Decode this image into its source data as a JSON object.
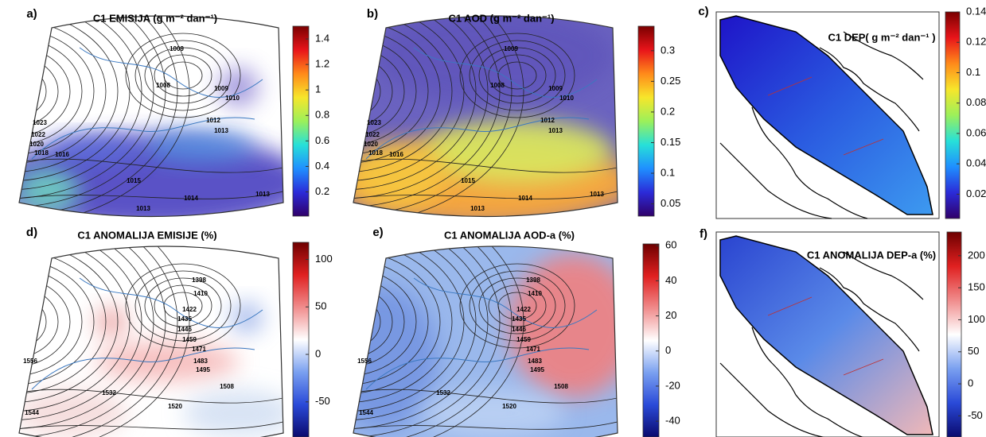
{
  "panels": [
    {
      "label": "a)",
      "title": "C1 EMISIJA (g m⁻² dan⁻¹)",
      "colorbar": {
        "lim": [
          0.01,
          1.5
        ],
        "ticks": [
          0.2,
          0.4,
          0.6,
          0.8,
          1,
          1.2,
          1.4
        ],
        "colormap": [
          "#30006a",
          "#2b2bd8",
          "#1f8fff",
          "#27e0d8",
          "#9cf05a",
          "#f7e62b",
          "#ff8a1a",
          "#e8141a",
          "#7a0000"
        ]
      },
      "contour_labels": [
        "1009",
        "1008",
        "1009",
        "1010",
        "1012",
        "1013",
        "1023",
        "1022",
        "1020",
        "1018",
        "1016",
        "1015",
        "1014",
        "1013",
        "1013"
      ]
    },
    {
      "label": "b)",
      "title": "C1 AOD (g m⁻² dan⁻¹)",
      "colorbar": {
        "lim": [
          0.03,
          0.34
        ],
        "ticks": [
          0.05,
          0.1,
          0.15,
          0.2,
          0.25,
          0.3
        ],
        "colormap": [
          "#30006a",
          "#2b2bd8",
          "#1f8fff",
          "#27e0d8",
          "#9cf05a",
          "#f7e62b",
          "#ff8a1a",
          "#e8141a",
          "#7a0000"
        ]
      },
      "contour_labels": [
        "1009",
        "1008",
        "1009",
        "1010",
        "1012",
        "1013",
        "1023",
        "1022",
        "1020",
        "1018",
        "1016",
        "1015",
        "1014",
        "1013",
        "1013"
      ]
    },
    {
      "label": "c)",
      "title": "C1 DEP( g m⁻² dan⁻¹ )",
      "colorbar": {
        "lim": [
          0.004,
          0.14
        ],
        "ticks": [
          0.02,
          0.04,
          0.06,
          0.08,
          0.1,
          0.12,
          0.14
        ],
        "colormap": [
          "#30006a",
          "#2b2bd8",
          "#1f8fff",
          "#27e0d8",
          "#9cf05a",
          "#f7e62b",
          "#ff8a1a",
          "#e8141a",
          "#7a0000"
        ]
      },
      "contour_labels": []
    },
    {
      "label": "d)",
      "title": "C1 ANOMALIJA EMISIJE (%)",
      "colorbar": {
        "lim": [
          -87,
          118
        ],
        "ticks": [
          -50,
          0,
          50,
          100
        ],
        "colormap": [
          "#0a0a6e",
          "#2a4ad8",
          "#7aa0f0",
          "#ffffff",
          "#f08c8c",
          "#e02020",
          "#6e0000"
        ]
      },
      "contour_labels": [
        "1398",
        "1410",
        "1422",
        "1435",
        "1446",
        "1459",
        "1471",
        "1483",
        "1495",
        "1508",
        "1520",
        "1532",
        "1544",
        "1556"
      ]
    },
    {
      "label": "e)",
      "title": "C1 ANOMALIJA AOD-a (%)",
      "colorbar": {
        "lim": [
          -49,
          61
        ],
        "ticks": [
          -40,
          -20,
          0,
          20,
          40,
          60
        ],
        "colormap": [
          "#0a0a6e",
          "#2a4ad8",
          "#7aa0f0",
          "#ffffff",
          "#f08c8c",
          "#e02020",
          "#6e0000"
        ]
      },
      "contour_labels": [
        "1398",
        "1410",
        "1422",
        "1435",
        "1446",
        "1459",
        "1471",
        "1483",
        "1495",
        "1508",
        "1520",
        "1532",
        "1544",
        "1556"
      ]
    },
    {
      "label": "f)",
      "title": "C1 ANOMALIJA DEP-a (%)",
      "colorbar": {
        "lim": [
          -83,
          237
        ],
        "ticks": [
          -50,
          0,
          50,
          100,
          150,
          200
        ],
        "colormap": [
          "#0a0a6e",
          "#2a4ad8",
          "#7aa0f0",
          "#ffffff",
          "#f08c8c",
          "#e02020",
          "#6e0000"
        ]
      },
      "contour_labels": []
    }
  ]
}
